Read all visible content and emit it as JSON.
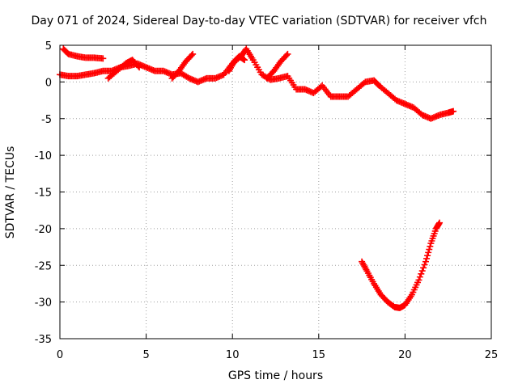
{
  "chart_data": {
    "type": "scatter",
    "title": "Day 071 of 2024, Sidereal Day-to-day VTEC variation (SDTVAR) for receiver vfch",
    "xlabel": "GPS time / hours",
    "ylabel": "SDTVAR / TECUs",
    "xlim": [
      0,
      25
    ],
    "ylim": [
      -35,
      5
    ],
    "xticks": [
      0,
      5,
      10,
      15,
      20,
      25
    ],
    "yticks": [
      5,
      0,
      -5,
      -10,
      -15,
      -20,
      -25,
      -30,
      -35
    ],
    "xtick_labels": [
      "0",
      "5",
      "10",
      "15",
      "20",
      "25"
    ],
    "ytick_labels": [
      "5",
      "0",
      "-5",
      "-10",
      "-15",
      "-20",
      "-25",
      "-30",
      "-35"
    ],
    "grid": true,
    "marker": "plus",
    "series": [
      {
        "name": "main-track",
        "color": "#ff0000",
        "x": [
          0.0,
          0.5,
          1.0,
          1.5,
          2.0,
          2.5,
          3.0,
          3.5,
          4.0,
          4.5,
          5.0,
          5.5,
          6.0,
          6.5,
          7.0,
          7.5,
          8.0,
          8.5,
          9.0,
          9.5,
          10.0,
          10.5,
          10.8,
          11.2,
          11.7,
          12.2,
          12.7,
          13.2,
          13.7,
          14.2,
          14.7,
          15.2,
          15.7,
          16.2,
          16.7,
          17.2,
          17.7,
          18.2,
          18.5,
          19.0,
          19.5,
          20.0,
          20.5,
          21.0,
          21.5,
          22.0,
          22.5,
          22.8
        ],
        "y": [
          1.0,
          0.8,
          0.8,
          1.0,
          1.2,
          1.5,
          1.5,
          2.0,
          2.2,
          2.5,
          2.0,
          1.5,
          1.5,
          1.0,
          1.2,
          0.5,
          0.0,
          0.5,
          0.5,
          1.0,
          2.5,
          3.5,
          4.5,
          3.0,
          1.0,
          0.3,
          0.5,
          0.8,
          -1.0,
          -1.0,
          -1.5,
          -0.5,
          -2.0,
          -2.0,
          -2.0,
          -1.0,
          0.0,
          0.2,
          -0.5,
          -1.5,
          -2.5,
          -3.0,
          -3.5,
          -4.5,
          -5.0,
          -4.5,
          -4.2,
          -4.0
        ]
      },
      {
        "name": "upper-arc",
        "color": "#ff0000",
        "x": [
          0.2,
          0.5,
          1.0,
          1.5,
          2.0,
          2.5
        ],
        "y": [
          4.5,
          3.8,
          3.5,
          3.3,
          3.3,
          3.2
        ]
      },
      {
        "name": "segment-4h",
        "color": "#ff0000",
        "x": [
          2.8,
          3.3,
          3.8,
          4.2,
          4.6
        ],
        "y": [
          0.5,
          1.5,
          2.5,
          3.0,
          2.0
        ]
      },
      {
        "name": "segment-7h",
        "color": "#ff0000",
        "x": [
          6.5,
          6.9,
          7.3,
          7.7
        ],
        "y": [
          0.5,
          1.5,
          2.8,
          3.8
        ]
      },
      {
        "name": "segment-10h",
        "color": "#ff0000",
        "x": [
          9.8,
          10.1,
          10.4,
          10.7
        ],
        "y": [
          1.5,
          2.8,
          3.5,
          3.0
        ]
      },
      {
        "name": "segment-12h",
        "color": "#ff0000",
        "x": [
          12.0,
          12.4,
          12.8,
          13.2
        ],
        "y": [
          0.5,
          1.5,
          2.8,
          3.8
        ]
      },
      {
        "name": "lower-arc",
        "color": "#ff0000",
        "x": [
          17.5,
          17.8,
          18.2,
          18.6,
          19.0,
          19.4,
          19.7,
          20.0,
          20.4,
          20.8,
          21.2,
          21.5,
          21.8,
          22.0
        ],
        "y": [
          -24.5,
          -25.8,
          -27.5,
          -29.0,
          -30.0,
          -30.7,
          -30.8,
          -30.4,
          -29.0,
          -27.0,
          -24.5,
          -22.0,
          -20.0,
          -19.2
        ]
      }
    ]
  }
}
